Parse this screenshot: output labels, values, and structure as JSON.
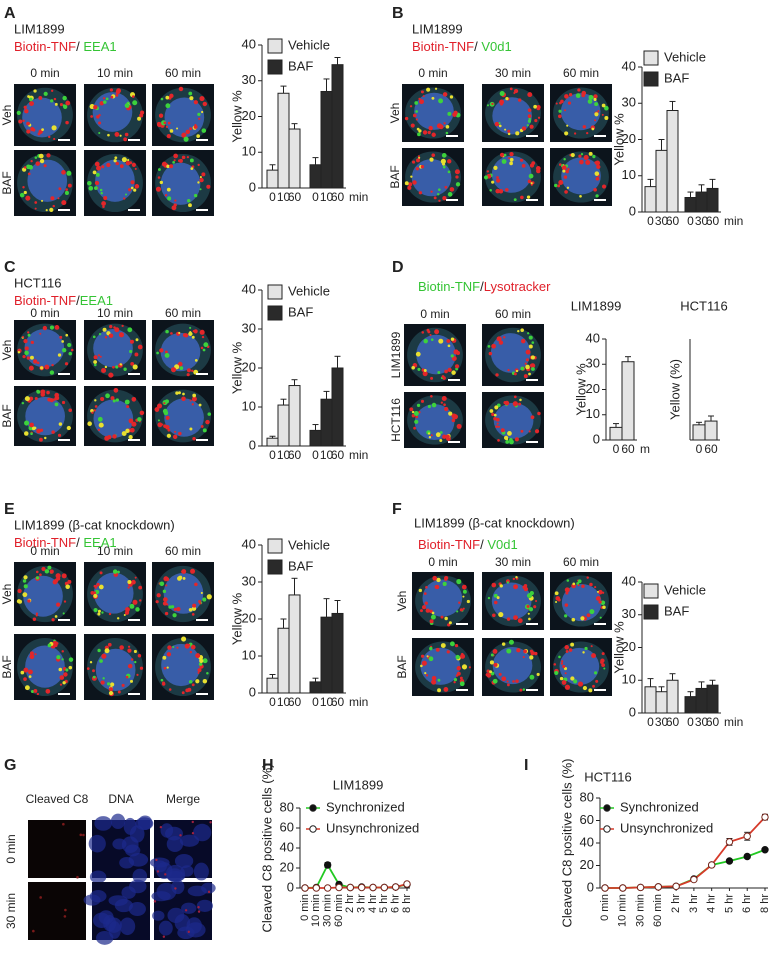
{
  "panels": [
    {
      "letter": "A",
      "label": "LIM1899",
      "stain": [
        {
          "text": "Biotin-TNF",
          "color": "#e0202a"
        },
        {
          "text": "/ ",
          "color": "#222222"
        },
        {
          "text": "EEA1",
          "color": "#35c435"
        }
      ],
      "columns": [
        "0 min",
        "10 min",
        "60 min"
      ],
      "rows": [
        "Veh",
        "BAF"
      ]
    },
    {
      "letter": "B",
      "label": "LIM1899",
      "stain": [
        {
          "text": "Biotin-TNF",
          "color": "#e0202a"
        },
        {
          "text": "/ ",
          "color": "#222222"
        },
        {
          "text": "V0d1",
          "color": "#35c435"
        }
      ],
      "columns": [
        "0 min",
        "30 min",
        "60 min"
      ],
      "rows": [
        "Veh",
        "BAF"
      ]
    },
    {
      "letter": "C",
      "label": "HCT116",
      "stain": [
        {
          "text": "Biotin-TNF",
          "color": "#e0202a"
        },
        {
          "text": "/",
          "color": "#222222"
        },
        {
          "text": "EEA1",
          "color": "#35c435"
        }
      ],
      "columns": [
        "0 min",
        "10 min",
        "60 min"
      ],
      "rows": [
        "Veh",
        "BAF"
      ]
    },
    {
      "letter": "D",
      "stain": [
        {
          "text": "Biotin-TNF",
          "color": "#35c435"
        },
        {
          "text": "/",
          "color": "#222222"
        },
        {
          "text": "Lysotracker",
          "color": "#e0202a"
        }
      ],
      "columns": [
        "0 min",
        "60 min"
      ],
      "rows": [
        "LIM1899",
        "HCT116"
      ]
    },
    {
      "letter": "E",
      "label": "LIM1899 (β-cat knockdown)",
      "stain": [
        {
          "text": "Biotin-TNF",
          "color": "#e0202a"
        },
        {
          "text": "/ ",
          "color": "#222222"
        },
        {
          "text": "EEA1",
          "color": "#35c435"
        }
      ],
      "columns": [
        "0 min",
        "10 min",
        "60 min"
      ],
      "rows": [
        "Veh",
        "BAF"
      ]
    },
    {
      "letter": "F",
      "label": "LIM1899 (β-cat knockdown)",
      "stain": [
        {
          "text": "Biotin-TNF",
          "color": "#e0202a"
        },
        {
          "text": "/ ",
          "color": "#222222"
        },
        {
          "text": "V0d1",
          "color": "#35c435"
        }
      ],
      "columns": [
        "0 min",
        "30 min",
        "60 min"
      ],
      "rows": [
        "Veh",
        "BAF"
      ]
    },
    {
      "letter": "G",
      "columns": [
        "Cleaved C8",
        "DNA",
        "Merge"
      ],
      "column_colors": [
        "#e0202a",
        "#2a2ad0",
        "#222222"
      ],
      "rows": [
        "0 min",
        "30 min"
      ]
    },
    {
      "letter": "H"
    },
    {
      "letter": "I"
    }
  ],
  "chart_data": [
    {
      "type": "bar",
      "ylabel": "Yellow %",
      "categories": [
        "0",
        "10",
        "60"
      ],
      "x_unit": "min",
      "ylim": [
        0,
        40
      ],
      "yticks": [
        0,
        10,
        20,
        30,
        40
      ],
      "series": [
        {
          "name": "Vehicle",
          "color": "#e4e4e4",
          "values": [
            5,
            26.5,
            16.5
          ],
          "errors": [
            1.5,
            2,
            1.5
          ]
        },
        {
          "name": "BAF",
          "color": "#2a2a2a",
          "values": [
            6.5,
            27,
            34.5
          ],
          "errors": [
            2,
            3.5,
            2
          ]
        }
      ]
    },
    {
      "type": "bar",
      "ylabel": "Yellow %",
      "categories": [
        "0",
        "30",
        "60"
      ],
      "x_unit": "min",
      "ylim": [
        0,
        40
      ],
      "yticks": [
        0,
        10,
        20,
        30,
        40
      ],
      "series": [
        {
          "name": "Vehicle",
          "color": "#e4e4e4",
          "values": [
            7,
            17,
            28
          ],
          "errors": [
            2,
            3,
            2.5
          ]
        },
        {
          "name": "BAF",
          "color": "#2a2a2a",
          "values": [
            4,
            5.5,
            6.5
          ],
          "errors": [
            1.5,
            2,
            2.5
          ]
        }
      ]
    },
    {
      "type": "bar",
      "ylabel": "Yellow %",
      "categories": [
        "0",
        "10",
        "60"
      ],
      "x_unit": "min",
      "ylim": [
        0,
        40
      ],
      "yticks": [
        0,
        10,
        20,
        30,
        40
      ],
      "series": [
        {
          "name": "Vehicle",
          "color": "#e4e4e4",
          "values": [
            2,
            10.5,
            15.5
          ],
          "errors": [
            0.5,
            1.5,
            1.5
          ]
        },
        {
          "name": "BAF",
          "color": "#2a2a2a",
          "values": [
            4,
            12,
            20
          ],
          "errors": [
            1.5,
            2,
            3
          ]
        }
      ]
    },
    {
      "type": "bar",
      "title": "LIM1899",
      "ylabel": "Yellow %",
      "categories": [
        "0",
        "60"
      ],
      "x_unit": "m",
      "ylim": [
        0,
        40
      ],
      "yticks": [
        0,
        10,
        20,
        30,
        40
      ],
      "series": [
        {
          "color": "#e4e4e4",
          "values": [
            5,
            31
          ],
          "errors": [
            1.5,
            2
          ]
        }
      ]
    },
    {
      "type": "bar",
      "title": "HCT116",
      "ylabel": "Yellow (%)",
      "categories": [
        "0",
        "60"
      ],
      "ylim": [
        0,
        40
      ],
      "series": [
        {
          "color": "#e4e4e4",
          "values": [
            6,
            7.5
          ],
          "errors": [
            1,
            2
          ]
        }
      ]
    },
    {
      "type": "bar",
      "ylabel": "Yellow %",
      "categories": [
        "0",
        "10",
        "60"
      ],
      "x_unit": "min",
      "ylim": [
        0,
        40
      ],
      "yticks": [
        0,
        10,
        20,
        30,
        40
      ],
      "series": [
        {
          "name": "Vehicle",
          "color": "#e4e4e4",
          "values": [
            4,
            17.5,
            26.5
          ],
          "errors": [
            1,
            2.5,
            4.5
          ]
        },
        {
          "name": "BAF",
          "color": "#2a2a2a",
          "values": [
            3,
            20.5,
            21.5
          ],
          "errors": [
            1,
            5,
            3.5
          ]
        }
      ]
    },
    {
      "type": "bar",
      "ylabel": "Yellow %",
      "categories": [
        "0",
        "30",
        "60"
      ],
      "x_unit": "min",
      "ylim": [
        0,
        40
      ],
      "yticks": [
        0,
        10,
        20,
        30,
        40
      ],
      "series": [
        {
          "name": "Vehicle",
          "color": "#e4e4e4",
          "values": [
            8,
            6.5,
            10
          ],
          "errors": [
            2.5,
            1.5,
            2
          ]
        },
        {
          "name": "BAF",
          "color": "#2a2a2a",
          "values": [
            5,
            7.5,
            8.5
          ],
          "errors": [
            1.5,
            2,
            1.5
          ]
        }
      ]
    },
    {
      "type": "line",
      "title": "LIM1899",
      "ylabel": "Cleaved C8 positive cells (%)",
      "categories": [
        "0 min",
        "10 min",
        "30 min",
        "60 min",
        "2 hr",
        "3 hr",
        "4 hr",
        "5 hr",
        "6 hr",
        "8 hr"
      ],
      "ylim": [
        0,
        80
      ],
      "yticks": [
        0,
        20,
        40,
        60,
        80
      ],
      "series": [
        {
          "name": "Synchronized",
          "color": "#22c922",
          "marker": "filled",
          "values": [
            0,
            0.5,
            23,
            3.5,
            0.5,
            1,
            0.5,
            0.5,
            1,
            3.5
          ],
          "errors": [
            0,
            0,
            2.5,
            0,
            0,
            0,
            0,
            0,
            0,
            0
          ]
        },
        {
          "name": "Unsynchronized",
          "color": "#d63a2a",
          "marker": "open",
          "values": [
            0,
            0,
            0,
            0.5,
            0.5,
            0.5,
            0.5,
            0.5,
            1,
            4
          ],
          "errors": [
            0,
            0,
            0,
            0,
            0,
            0,
            0,
            0,
            0,
            0
          ]
        }
      ]
    },
    {
      "type": "line",
      "title": "HCT116",
      "ylabel": "Cleaved C8 positive cells (%)",
      "categories": [
        "0 min",
        "10 min",
        "30 min",
        "60 min",
        "2 hr",
        "3 hr",
        "4 hr",
        "5 hr",
        "6 hr",
        "8 hr"
      ],
      "ylim": [
        0,
        80
      ],
      "yticks": [
        0,
        20,
        40,
        60,
        80
      ],
      "series": [
        {
          "name": "Synchronized",
          "color": "#22c922",
          "marker": "filled",
          "values": [
            0,
            0,
            0.5,
            1,
            1.5,
            8,
            20.5,
            24,
            28,
            34
          ],
          "errors": [
            0,
            0,
            0,
            0,
            0,
            0,
            0,
            0,
            1.5,
            1
          ]
        },
        {
          "name": "Unsynchronized",
          "color": "#d63a2a",
          "marker": "open",
          "values": [
            0,
            0,
            0.5,
            1,
            1.5,
            7.5,
            20.5,
            41,
            46,
            63
          ],
          "errors": [
            0,
            0,
            0,
            0,
            0,
            0,
            0,
            3,
            3.5,
            2.5
          ]
        }
      ]
    }
  ]
}
